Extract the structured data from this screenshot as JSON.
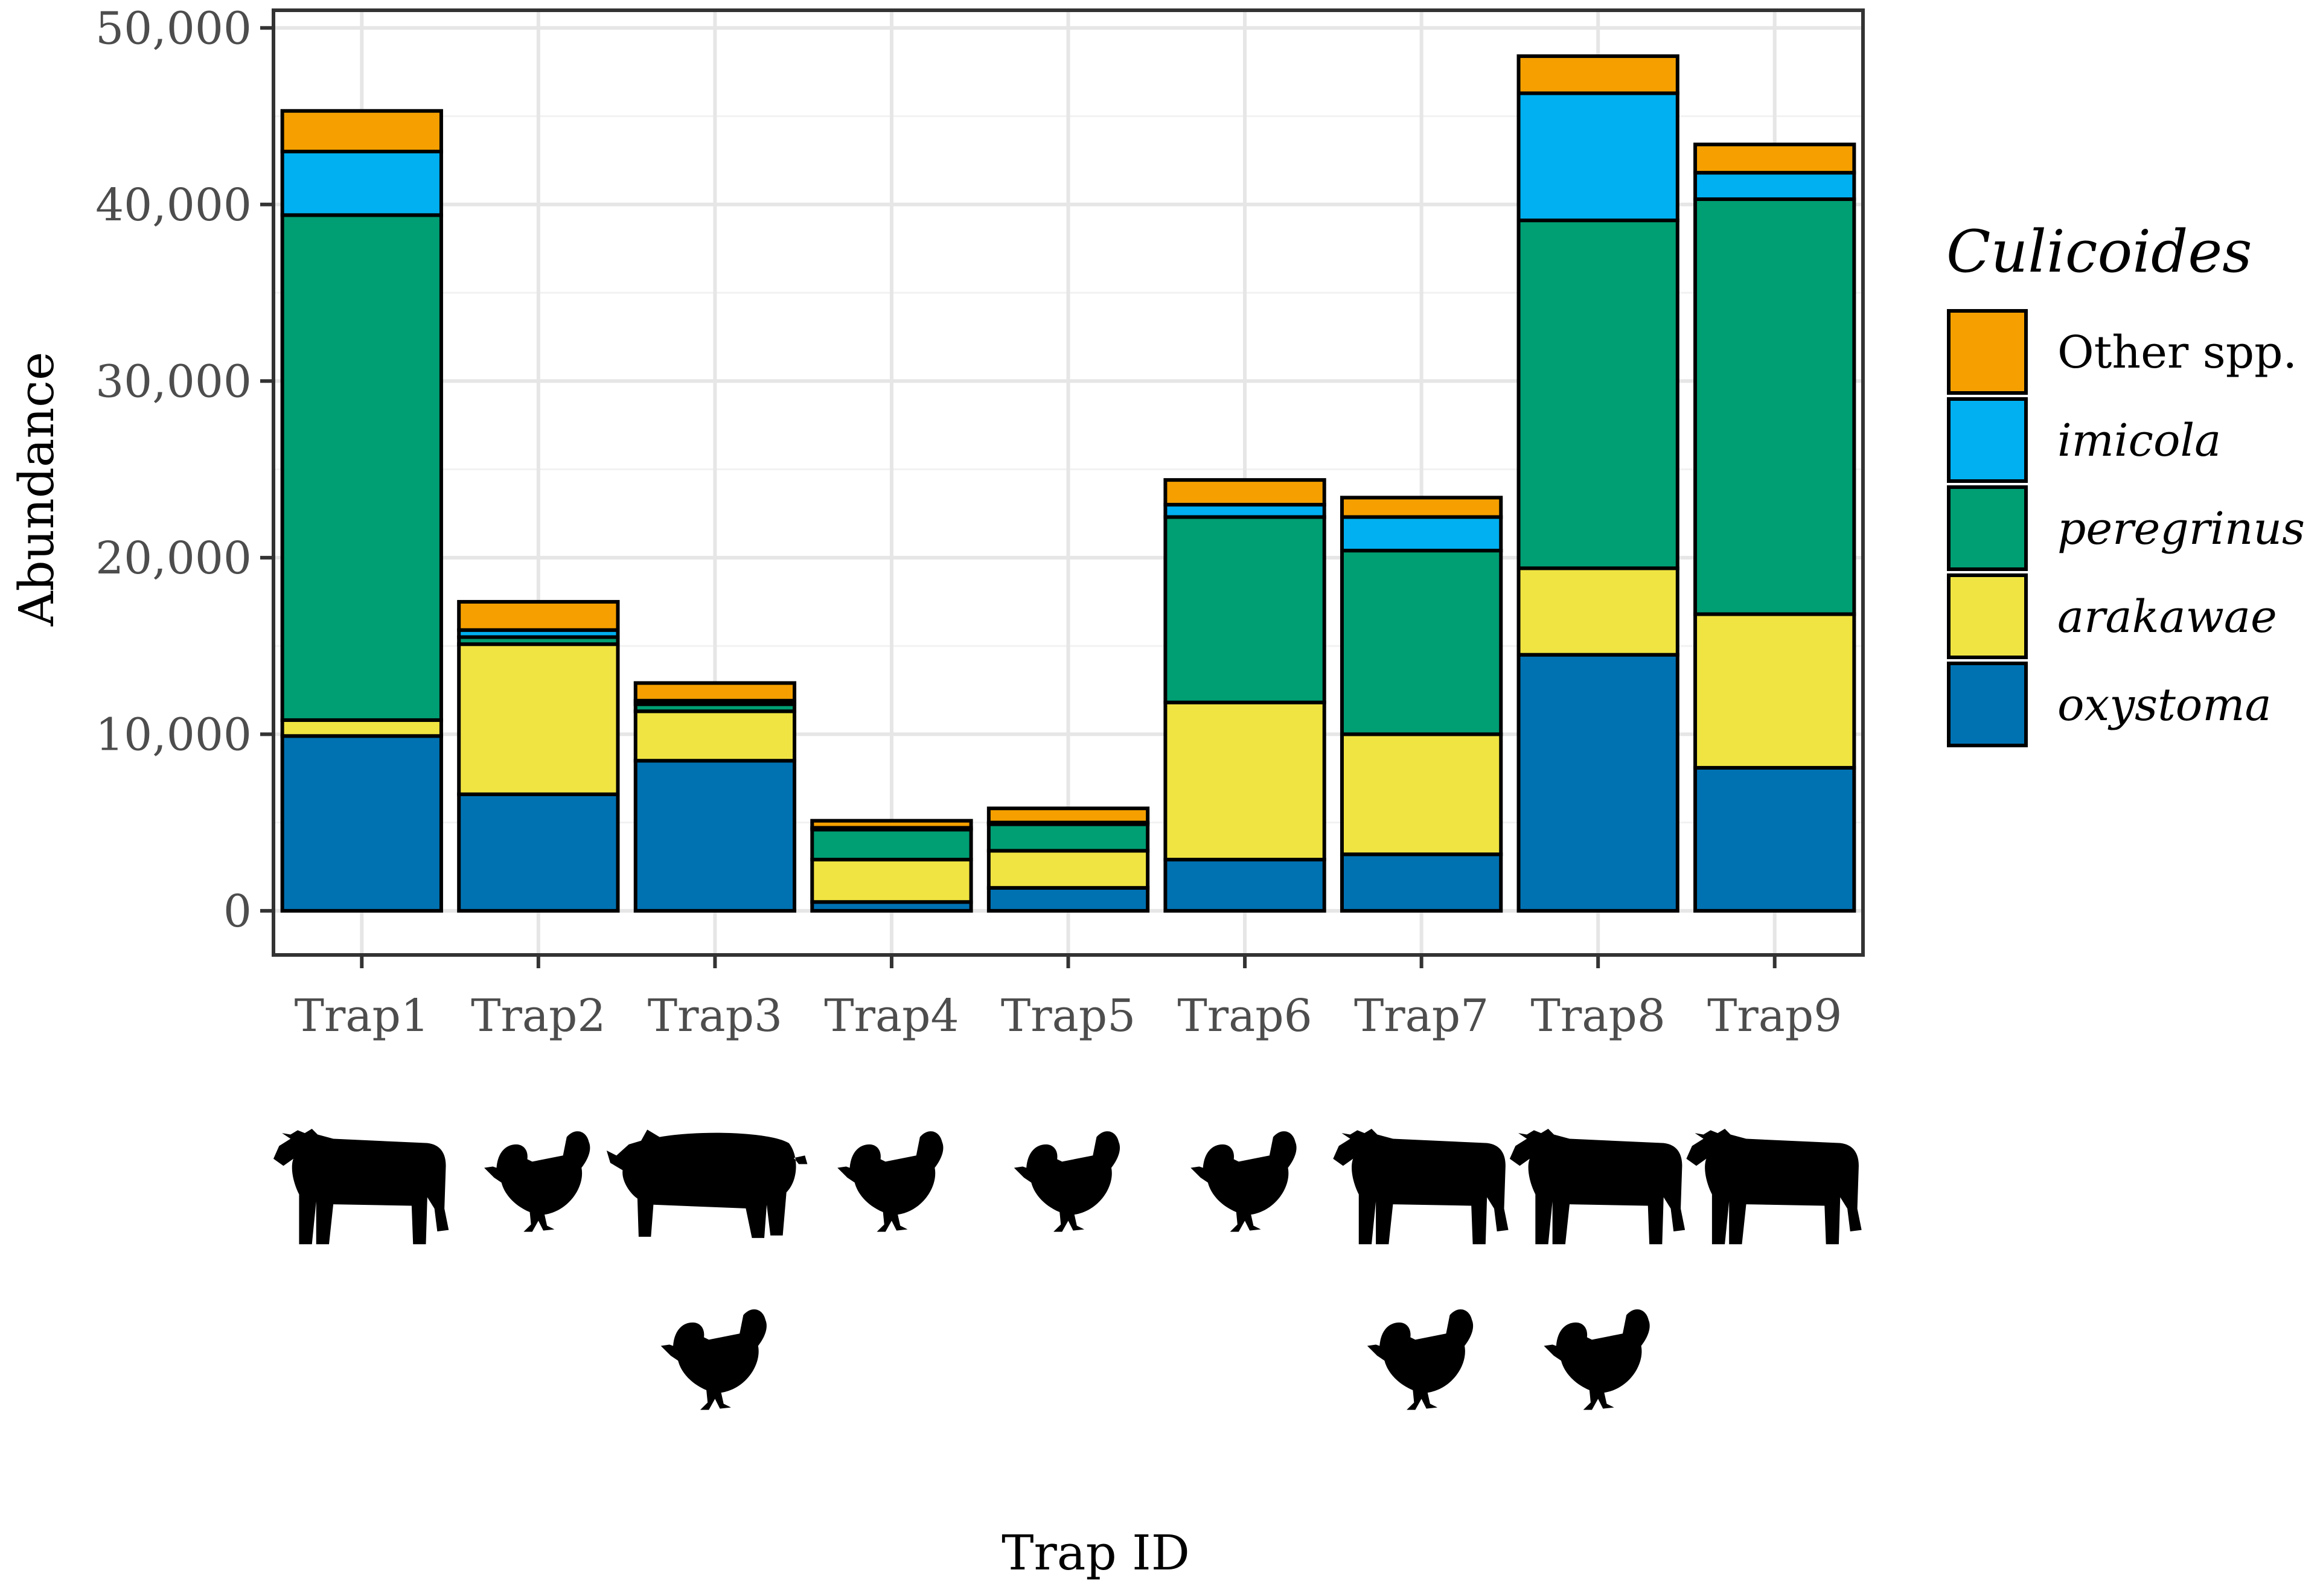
{
  "chart_data": {
    "type": "bar",
    "stacked": true,
    "categories": [
      "Trap1",
      "Trap2",
      "Trap3",
      "Trap4",
      "Trap5",
      "Trap6",
      "Trap7",
      "Trap8",
      "Trap9"
    ],
    "series": [
      {
        "name": "oxystoma",
        "color": "#0072B2",
        "values": [
          9900,
          6600,
          8500,
          500,
          1300,
          2900,
          3200,
          14500,
          8100
        ]
      },
      {
        "name": "arakawae",
        "color": "#F0E442",
        "values": [
          900,
          8500,
          2800,
          2400,
          2100,
          8900,
          6800,
          4900,
          8700
        ]
      },
      {
        "name": "peregrinus",
        "color": "#009E73",
        "values": [
          28600,
          400,
          400,
          1700,
          1500,
          10500,
          10400,
          19700,
          23500
        ]
      },
      {
        "name": "imicola",
        "color": "#00B0F0",
        "values": [
          3600,
          400,
          200,
          100,
          100,
          700,
          1900,
          7200,
          1500
        ]
      },
      {
        "name": "Other spp.",
        "color": "#F5A000",
        "values": [
          2300,
          1600,
          1000,
          400,
          800,
          1400,
          1100,
          2100,
          1600
        ]
      }
    ],
    "xlabel": "Trap ID",
    "ylabel": "Abundance",
    "ylim": [
      -2500,
      51000
    ],
    "yticks": [
      0,
      10000,
      20000,
      30000,
      40000,
      50000
    ],
    "ytick_labels": [
      "0",
      "10,000",
      "20,000",
      "30,000",
      "40,000",
      "50,000"
    ],
    "legend": {
      "title": "Culicoides",
      "position": "right",
      "entries": [
        "Other spp.",
        "imicola",
        "peregrinus",
        "arakawae",
        "oxystoma"
      ]
    },
    "hosts": [
      [
        "cow-icon"
      ],
      [
        "chicken-icon"
      ],
      [
        "pig-icon",
        "chicken-icon"
      ],
      [
        "chicken-icon"
      ],
      [
        "chicken-icon"
      ],
      [
        "chicken-icon"
      ],
      [
        "cow-icon",
        "chicken-icon"
      ],
      [
        "cow-icon",
        "chicken-icon"
      ],
      [
        "cow-icon"
      ]
    ]
  }
}
